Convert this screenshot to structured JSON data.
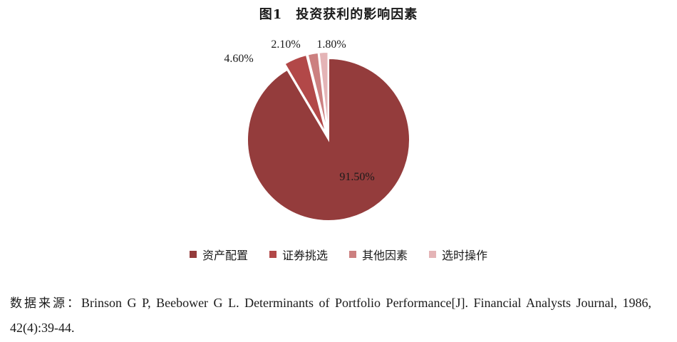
{
  "chart_data": {
    "type": "pie",
    "title": "图1　投资获利的影响因素",
    "slices": [
      {
        "name": "资产配置",
        "value": 91.5,
        "label": "91.50%",
        "color": "#943c3c"
      },
      {
        "name": "证券挑选",
        "value": 4.6,
        "label": "4.60%",
        "color": "#b24848"
      },
      {
        "name": "其他因素",
        "value": 2.1,
        "label": "2.10%",
        "color": "#cc8080"
      },
      {
        "name": "选时操作",
        "value": 1.8,
        "label": "1.80%",
        "color": "#e4b4b6"
      }
    ],
    "legend_position": "bottom"
  },
  "source": {
    "prefix": "数据来源：",
    "text": "Brinson G P, Beebower G L. Determinants of Portfolio Performance[J]. Financial Analysts Journal, 1986, 42(4):39-44."
  }
}
